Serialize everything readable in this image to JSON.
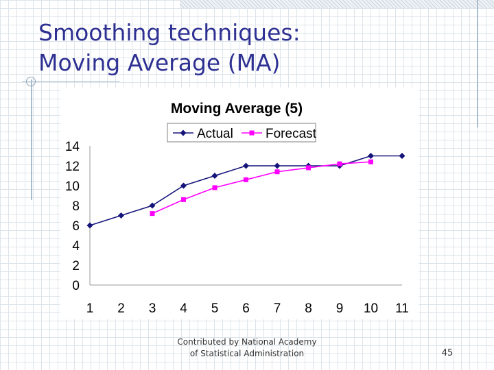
{
  "slide": {
    "title_line1": "Smoothing techniques:",
    "title_line2": "Moving Average (MA)",
    "footer_line1": "Contributed by National Academy",
    "footer_line2": "of Statistical Administration",
    "page_number": "45"
  },
  "chart_data": {
    "type": "line",
    "title": "Moving Average (5)",
    "x": [
      1,
      2,
      3,
      4,
      5,
      6,
      7,
      8,
      9,
      10,
      11
    ],
    "ylim": [
      0,
      14
    ],
    "yticks": [
      0,
      2,
      4,
      6,
      8,
      10,
      12,
      14
    ],
    "grid": false,
    "legend_position": "top",
    "series": [
      {
        "name": "Actual",
        "color": "#14147a",
        "marker": "diamond",
        "values": [
          6,
          7,
          8,
          10,
          11,
          12,
          12,
          12,
          12,
          13,
          13
        ]
      },
      {
        "name": "Forecast",
        "color": "#ff00ff",
        "marker": "square",
        "values": [
          null,
          null,
          7.2,
          8.6,
          9.8,
          10.6,
          11.4,
          11.8,
          12.2,
          12.4,
          null
        ]
      }
    ]
  }
}
